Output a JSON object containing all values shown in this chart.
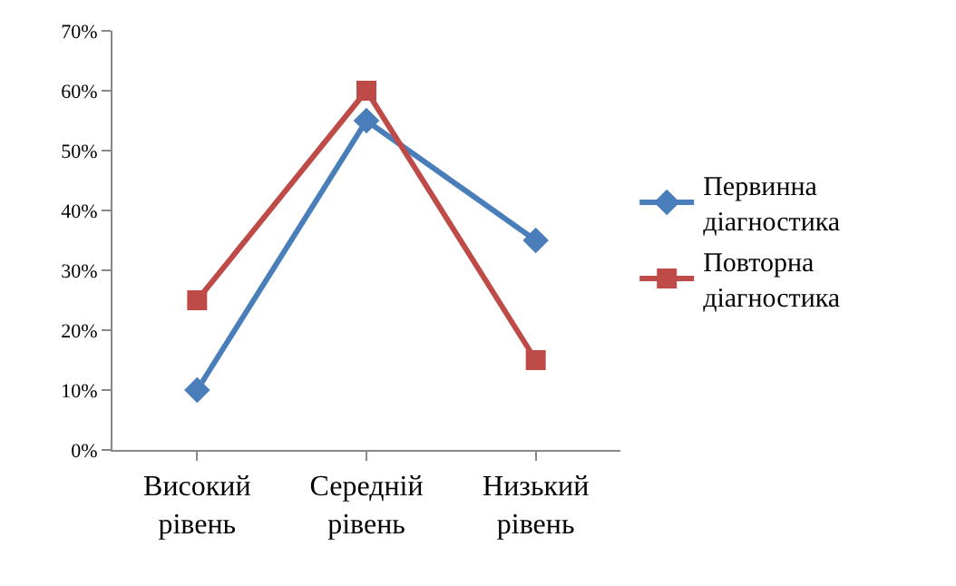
{
  "chart_data": {
    "type": "line",
    "categories": [
      "Високий рівень",
      "Середній рівень",
      "Низький рівень"
    ],
    "series": [
      {
        "name": "Первинна діагностика",
        "color": "#4a7ebb",
        "marker": "diamond",
        "values": [
          10,
          55,
          35
        ]
      },
      {
        "name": "Повторна діагностика",
        "color": "#be4b48",
        "marker": "square",
        "values": [
          25,
          60,
          15
        ]
      }
    ],
    "ylim": [
      0,
      70
    ],
    "yticks": [
      {
        "value": 0,
        "label": "0%"
      },
      {
        "value": 10,
        "label": "10%"
      },
      {
        "value": 20,
        "label": "20%"
      },
      {
        "value": 30,
        "label": "30%"
      },
      {
        "value": 40,
        "label": "40%"
      },
      {
        "value": 50,
        "label": "50%"
      },
      {
        "value": 60,
        "label": "60%"
      },
      {
        "value": 70,
        "label": "70%"
      }
    ],
    "grid": false,
    "legend": "right",
    "line_style": "solid"
  }
}
